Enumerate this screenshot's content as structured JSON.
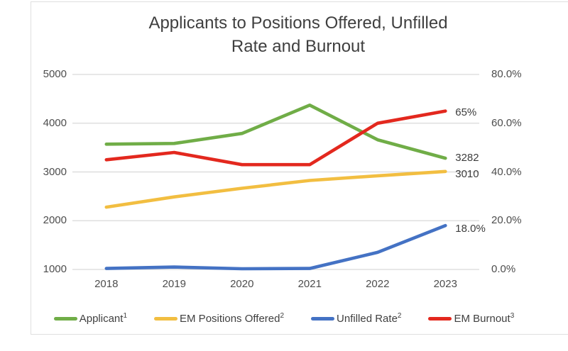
{
  "chart_data": {
    "type": "line",
    "title": "Applicants to Positions Offered, Unfilled Rate and Burnout",
    "title_lines": [
      "Applicants to Positions Offered, Unfilled",
      "Rate and Burnout"
    ],
    "x": [
      "2018",
      "2019",
      "2020",
      "2021",
      "2022",
      "2023"
    ],
    "left_axis": {
      "ticks": [
        "5000",
        "4000",
        "3000",
        "2000",
        "1000"
      ],
      "max": 5000,
      "min": 1000
    },
    "right_axis": {
      "ticks": [
        "80.0%",
        "60.0%",
        "40.0%",
        "20.0%",
        "0.0%"
      ],
      "max": 80.0,
      "min": 0.0
    },
    "grid": true,
    "legend_position": "bottom",
    "series": [
      {
        "name": "Applicant",
        "sup": "1",
        "axis": "left",
        "color": "#70AD47",
        "values": [
          3570,
          3585,
          3790,
          4370,
          3660,
          3282
        ],
        "end_label": "3282"
      },
      {
        "name": "EM Positions Offered",
        "sup": "2",
        "axis": "left",
        "color": "#F2BE41",
        "values": [
          2278,
          2488,
          2665,
          2826,
          2921,
          3010
        ],
        "end_label": "3010"
      },
      {
        "name": "Unfilled Rate",
        "sup": "2",
        "axis": "right",
        "color": "#4472C4",
        "values": [
          0.4,
          1.0,
          0.3,
          0.4,
          7.0,
          18.0
        ],
        "end_label": "18.0%"
      },
      {
        "name": "EM Burnout",
        "sup": "3",
        "axis": "right",
        "color": "#E3281E",
        "values": [
          45,
          48,
          43,
          43,
          60,
          65
        ],
        "end_label": "65%"
      }
    ],
    "colors": {
      "gridline": "#D9D9D9",
      "title_text": "#3F3F3F",
      "tick_text": "#4D4D4D",
      "label_text": "#3C3C3C"
    }
  }
}
